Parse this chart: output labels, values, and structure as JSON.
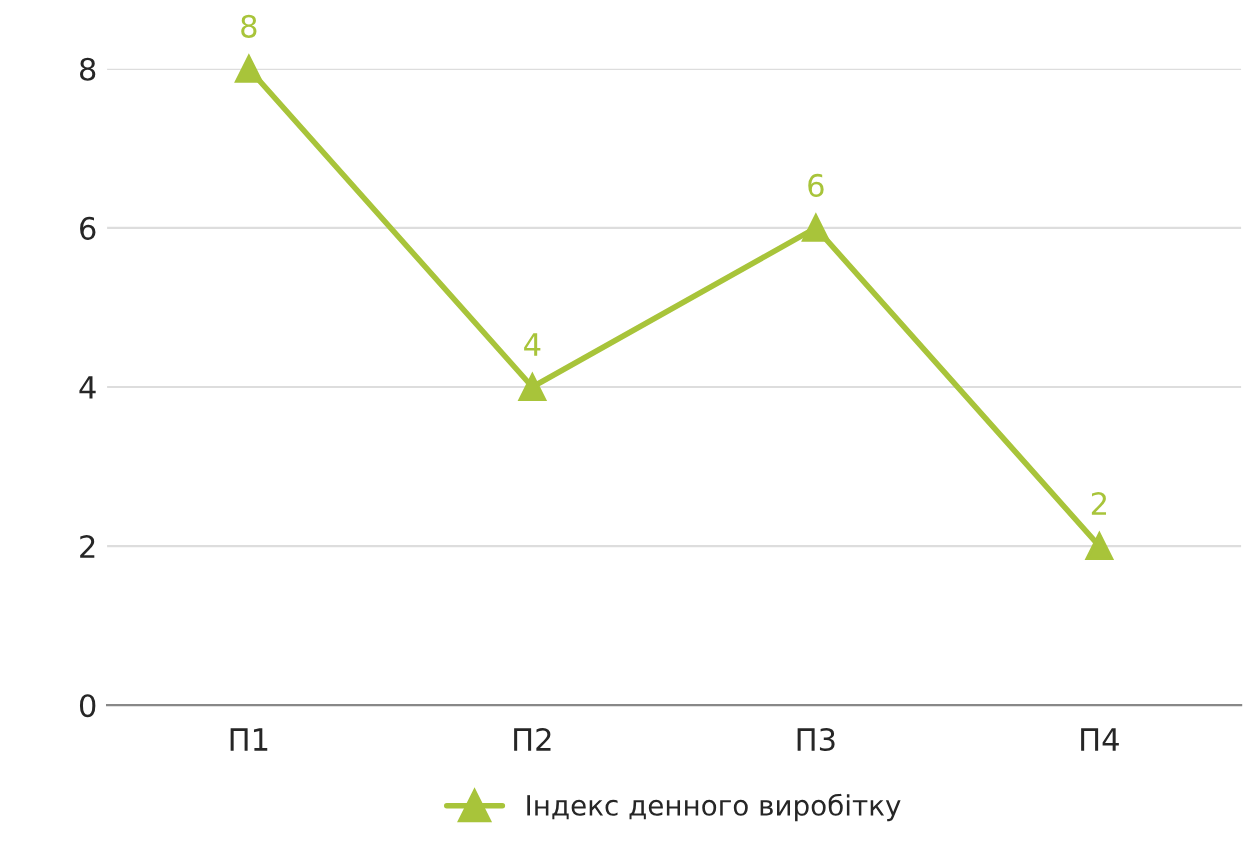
{
  "chart_data": {
    "type": "line",
    "categories": [
      "П1",
      "П2",
      "П3",
      "П4"
    ],
    "series": [
      {
        "name": "Індекс денного виробітку",
        "color": "#a8c43a",
        "values": [
          8,
          4,
          6,
          2
        ]
      }
    ],
    "ylim": [
      0,
      8
    ],
    "yticks": [
      0,
      2,
      4,
      6,
      8
    ],
    "grid": "y",
    "legend": "bottom",
    "marker": "triangle",
    "data_labels": true
  }
}
